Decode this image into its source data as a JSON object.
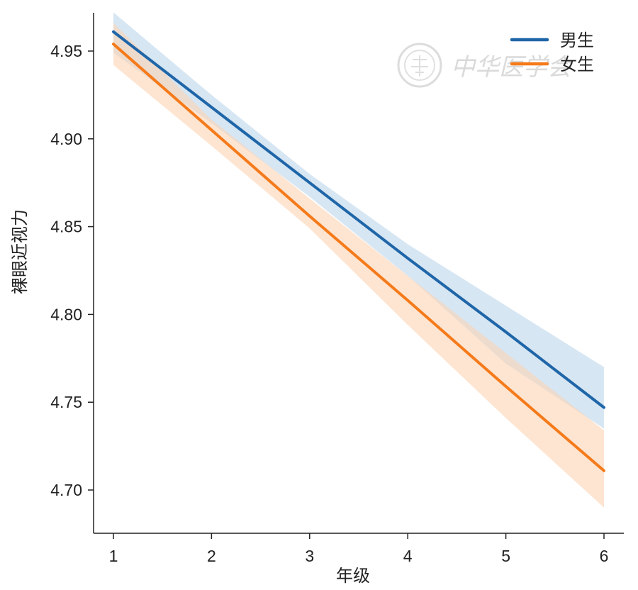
{
  "chart_data": {
    "type": "line",
    "xlabel": "年级",
    "ylabel": "裸眼近视力",
    "x": [
      1,
      2,
      3,
      4,
      5,
      6
    ],
    "xticks": [
      "1",
      "2",
      "3",
      "4",
      "5",
      "6"
    ],
    "yticks": [
      "4.70",
      "4.75",
      "4.80",
      "4.85",
      "4.90",
      "4.95"
    ],
    "ylim": [
      4.674,
      4.97
    ],
    "xlim": [
      0.8,
      6.2
    ],
    "grid": false,
    "legend_position": "top-right",
    "series": [
      {
        "name": "男生",
        "color": "#1f66a8",
        "band_color": "#b7d2ea",
        "values": [
          4.961,
          4.918,
          4.875,
          4.832,
          4.79,
          4.747
        ],
        "ci_upper": [
          4.972,
          4.925,
          4.88,
          4.84,
          4.805,
          4.77
        ],
        "ci_lower": [
          4.949,
          4.909,
          4.867,
          4.822,
          4.772,
          4.735
        ]
      },
      {
        "name": "女生",
        "color": "#f57a1a",
        "band_color": "#fcd3b4",
        "values": [
          4.954,
          4.905,
          4.856,
          4.808,
          4.759,
          4.711
        ],
        "ci_upper": [
          4.966,
          4.911,
          4.866,
          4.822,
          4.778,
          4.734
        ],
        "ci_lower": [
          4.942,
          4.896,
          4.849,
          4.794,
          4.741,
          4.69
        ]
      }
    ]
  },
  "watermark": {
    "text": "中华医学会"
  }
}
